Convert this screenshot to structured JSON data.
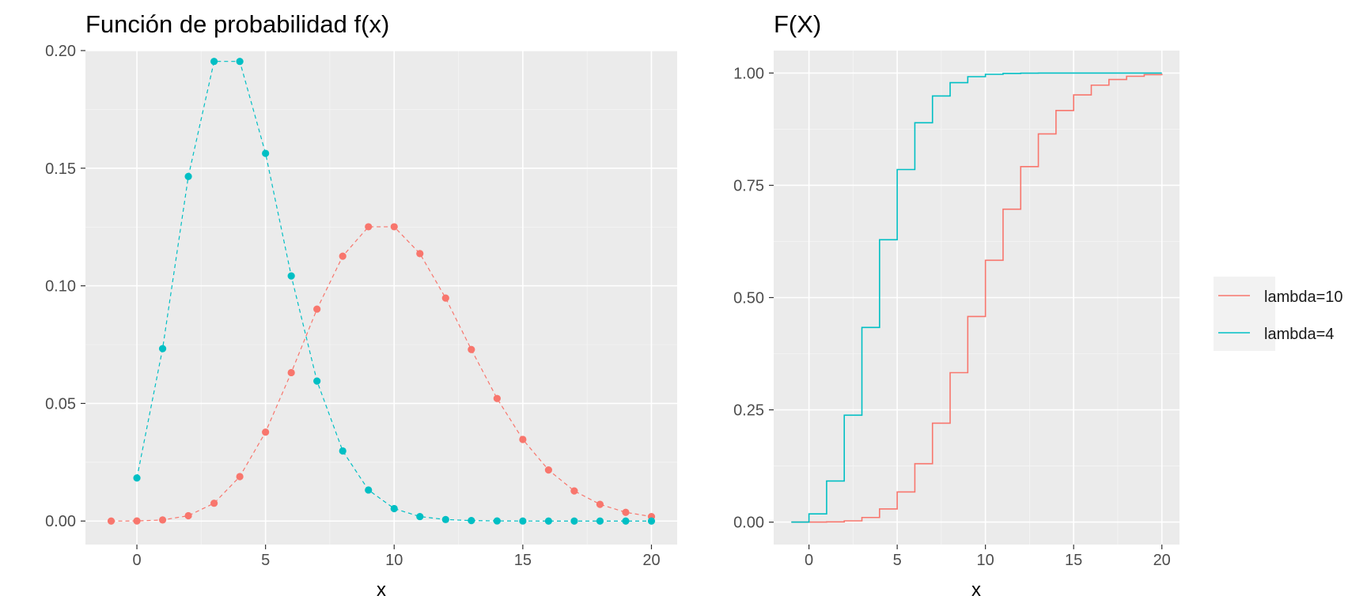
{
  "chart_data": [
    {
      "type": "line",
      "title": "Función de probabilidad f(x)",
      "xlabel": "x",
      "ylabel": "",
      "xlim": [
        -2,
        21
      ],
      "ylim": [
        -0.01,
        0.2
      ],
      "x_ticks": [
        0,
        5,
        10,
        15,
        20
      ],
      "x_tick_labels": [
        "0",
        "5",
        "10",
        "15",
        "20"
      ],
      "y_ticks": [
        0,
        0.05,
        0.1,
        0.15,
        0.2
      ],
      "y_tick_labels": [
        "0.00",
        "0.05",
        "0.10",
        "0.15",
        "0.20"
      ],
      "grid": true,
      "line_style": "dashed",
      "markers": true,
      "series": [
        {
          "name": "lambda=10",
          "color": "#F8766D",
          "x": [
            -1,
            0,
            1,
            2,
            3,
            4,
            5,
            6,
            7,
            8,
            9,
            10,
            11,
            12,
            13,
            14,
            15,
            16,
            17,
            18,
            19,
            20
          ],
          "y": [
            0,
            4.54e-05,
            0.000454,
            0.00227,
            0.00757,
            0.0189,
            0.0378,
            0.0631,
            0.0901,
            0.1126,
            0.1251,
            0.1251,
            0.1137,
            0.0948,
            0.0729,
            0.0521,
            0.0347,
            0.0217,
            0.0128,
            0.0071,
            0.0037,
            0.0019
          ]
        },
        {
          "name": "lambda=4",
          "color": "#00BFC4",
          "x": [
            0,
            1,
            2,
            3,
            4,
            5,
            6,
            7,
            8,
            9,
            10,
            11,
            12,
            13,
            14,
            15,
            16,
            17,
            18,
            19,
            20
          ],
          "y": [
            0.0183,
            0.0733,
            0.1465,
            0.1954,
            0.1954,
            0.1563,
            0.1042,
            0.0595,
            0.0298,
            0.0132,
            0.0053,
            0.0019,
            0.00064,
            0.0002,
            5.6e-05,
            1.5e-05,
            3.7e-06,
            9e-07,
            2e-07,
            1e-07,
            0
          ]
        }
      ]
    },
    {
      "type": "line",
      "title": "F(X)",
      "xlabel": "x",
      "ylabel": "",
      "xlim": [
        -2,
        21
      ],
      "ylim": [
        -0.05,
        1.05
      ],
      "x_ticks": [
        0,
        5,
        10,
        15,
        20
      ],
      "x_tick_labels": [
        "0",
        "5",
        "10",
        "15",
        "20"
      ],
      "y_ticks": [
        0,
        0.25,
        0.5,
        0.75,
        1
      ],
      "y_tick_labels": [
        "0.00",
        "0.25",
        "0.50",
        "0.75",
        "1.00"
      ],
      "grid": true,
      "line_style": "step",
      "legend_position": "right",
      "series": [
        {
          "name": "lambda=10",
          "color": "#F8766D",
          "x": [
            -1,
            0,
            1,
            2,
            3,
            4,
            5,
            6,
            7,
            8,
            9,
            10,
            11,
            12,
            13,
            14,
            15,
            16,
            17,
            18,
            19,
            20
          ],
          "y": [
            0,
            5e-05,
            0.0005,
            0.0028,
            0.0103,
            0.0293,
            0.0671,
            0.1301,
            0.2202,
            0.3328,
            0.4579,
            0.583,
            0.6968,
            0.7916,
            0.8645,
            0.9165,
            0.9513,
            0.973,
            0.9857,
            0.9928,
            0.9965,
            0.9984
          ]
        },
        {
          "name": "lambda=4",
          "color": "#00BFC4",
          "x": [
            -1,
            0,
            1,
            2,
            3,
            4,
            5,
            6,
            7,
            8,
            9,
            10,
            11,
            12,
            13,
            14,
            15,
            16,
            17,
            18,
            19,
            20
          ],
          "y": [
            0,
            0.0183,
            0.0916,
            0.2381,
            0.4335,
            0.6288,
            0.7851,
            0.8893,
            0.9489,
            0.9786,
            0.9919,
            0.9972,
            0.9991,
            0.9997,
            0.9999,
            1,
            1,
            1,
            1,
            1,
            1,
            1
          ]
        }
      ]
    }
  ],
  "legend": {
    "items": [
      {
        "label": "lambda=10",
        "color": "#F8766D"
      },
      {
        "label": "lambda=4",
        "color": "#00BFC4"
      }
    ]
  }
}
